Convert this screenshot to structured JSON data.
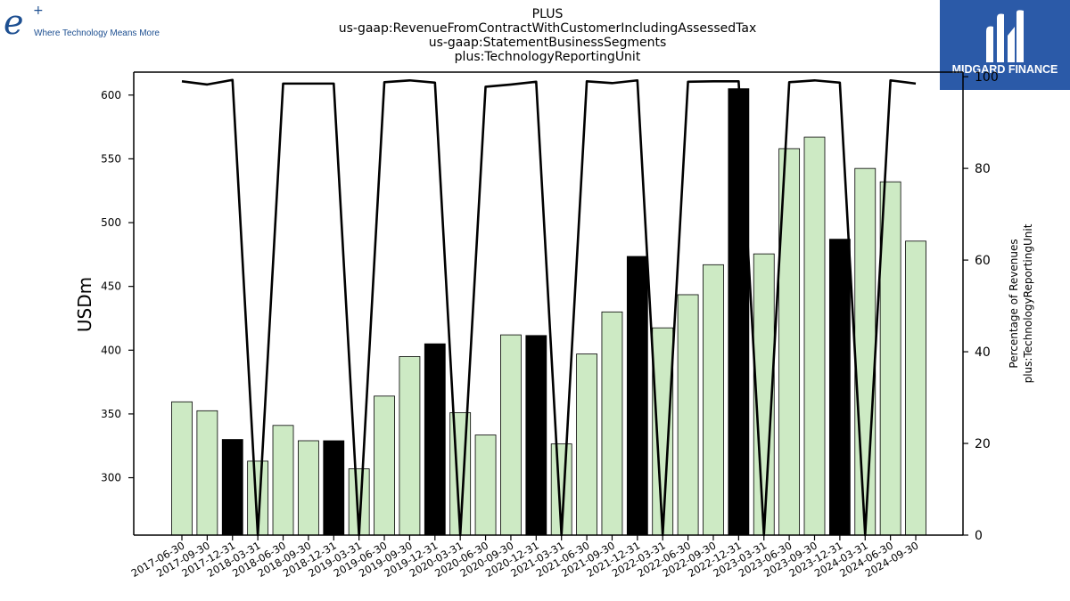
{
  "brand": {
    "left_logo_mark": "e",
    "left_logo_plus": "+",
    "left_tagline": "Where Technology Means More",
    "right_logo_text": "MIDGARD FINANCE",
    "right_logo_color": "#2b5aa8",
    "left_logo_color": "#1d4f91"
  },
  "chart_data": {
    "type": "bar",
    "title_lines": [
      "PLUS",
      "us-gaap:RevenueFromContractWithCustomerIncludingAssessedTax",
      "us-gaap:StatementBusinessSegments",
      "plus:TechnologyReportingUnit"
    ],
    "ylabel": "USDm",
    "y2label_lines": [
      "Percentage of Revenues",
      "plus:TechnologyReportingUnit"
    ],
    "ylim": [
      255,
      618
    ],
    "y2lim": [
      0,
      101
    ],
    "yticks": [
      300,
      350,
      400,
      450,
      500,
      550,
      600
    ],
    "y2ticks": [
      0,
      20,
      40,
      60,
      80,
      100
    ],
    "categories": [
      "2017-06-30",
      "2017-09-30",
      "2017-12-31",
      "2018-03-31",
      "2018-06-30",
      "2018-09-30",
      "2018-12-31",
      "2019-03-31",
      "2019-06-30",
      "2019-09-30",
      "2019-12-31",
      "2020-03-31",
      "2020-06-30",
      "2020-09-30",
      "2020-12-31",
      "2021-03-31",
      "2021-06-30",
      "2021-09-30",
      "2021-12-31",
      "2022-03-31",
      "2022-06-30",
      "2022-09-30",
      "2022-12-31",
      "2023-03-31",
      "2023-06-30",
      "2023-09-30",
      "2023-12-31",
      "2024-03-31",
      "2024-06-30",
      "2024-09-30"
    ],
    "series": [
      {
        "type": "bar",
        "axis": "left",
        "values": [
          359.5,
          352.5,
          330,
          313,
          341,
          329,
          329,
          307,
          364,
          395,
          405,
          351,
          333.5,
          412,
          411.5,
          326.5,
          397,
          430,
          473.5,
          417.5,
          443.5,
          467,
          605,
          475.5,
          558,
          567,
          487,
          542.5,
          532,
          485.5
        ],
        "colors": [
          "#cdeac4",
          "#cdeac4",
          "#000000",
          "#cdeac4",
          "#cdeac4",
          "#cdeac4",
          "#000000",
          "#cdeac4",
          "#cdeac4",
          "#cdeac4",
          "#000000",
          "#cdeac4",
          "#cdeac4",
          "#cdeac4",
          "#000000",
          "#cdeac4",
          "#cdeac4",
          "#cdeac4",
          "#000000",
          "#cdeac4",
          "#cdeac4",
          "#cdeac4",
          "#000000",
          "#cdeac4",
          "#cdeac4",
          "#cdeac4",
          "#000000",
          "#cdeac4",
          "#cdeac4",
          "#cdeac4"
        ]
      },
      {
        "type": "line",
        "axis": "right",
        "color": "#000000",
        "values": [
          99,
          98.3,
          99.3,
          0,
          98.5,
          98.5,
          98.5,
          0,
          98.8,
          99.2,
          98.7,
          0,
          97.8,
          98.3,
          98.9,
          0,
          99,
          98.6,
          99.2,
          0,
          98.9,
          99,
          99,
          0,
          98.8,
          99.2,
          98.7,
          0,
          99.2,
          98.5
        ]
      }
    ],
    "grid": false,
    "legend": "none"
  }
}
